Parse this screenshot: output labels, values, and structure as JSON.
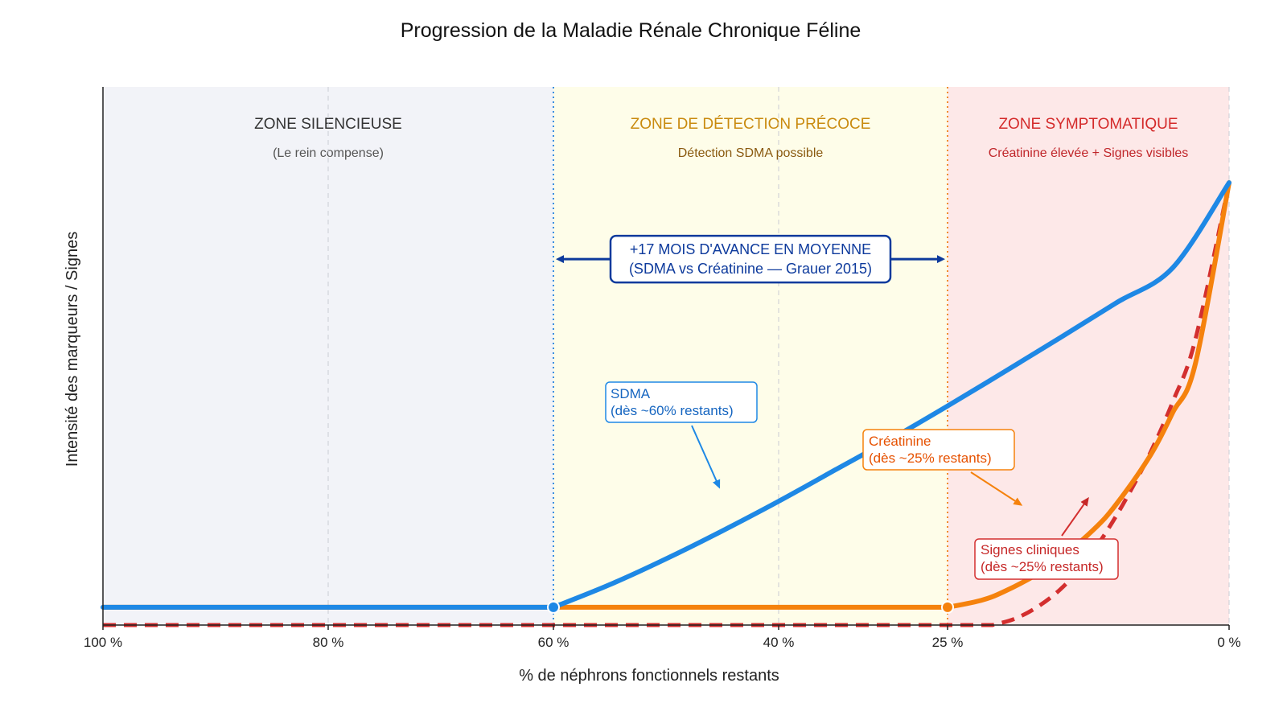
{
  "chart_data": {
    "type": "line",
    "title": "Progression de la Maladie Rénale Chronique Féline",
    "xlabel": "% de néphrons fonctionnels restants",
    "ylabel": "Intensité des marqueurs / Signes",
    "x_reversed": true,
    "xlim": [
      100,
      0
    ],
    "ylim": [
      0,
      100
    ],
    "x_ticks": [
      {
        "value": 100,
        "label": "100 %"
      },
      {
        "value": 80,
        "label": "80 %"
      },
      {
        "value": 60,
        "label": "60 %"
      },
      {
        "value": 40,
        "label": "40 %"
      },
      {
        "value": 25,
        "label": "25 %"
      },
      {
        "value": 0,
        "label": "0 %"
      }
    ],
    "grid_lines_x": [
      80,
      40,
      0
    ],
    "zones": [
      {
        "from": 100,
        "to": 60,
        "title": "ZONE SILENCIEUSE",
        "subtitle": "(Le rein compense)",
        "fill": "#f2f3f8",
        "title_color": "#333333",
        "subtitle_color": "#555555"
      },
      {
        "from": 60,
        "to": 25,
        "title": "ZONE DE DÉTECTION PRÉCOCE",
        "subtitle": "Détection SDMA possible",
        "fill": "#fefde9",
        "title_color": "#c98a0e",
        "subtitle_color": "#8a5a10"
      },
      {
        "from": 25,
        "to": 0,
        "title": "ZONE SYMPTOMATIQUE",
        "subtitle": "Créatinine élevée + Signes visibles",
        "fill": "#fde8e8",
        "title_color": "#d42a2a",
        "subtitle_color": "#c0262a"
      }
    ],
    "threshold_lines": [
      {
        "x": 60,
        "color": "#3b8fe0"
      },
      {
        "x": 25,
        "color": "#f08a2b"
      }
    ],
    "series": [
      {
        "key": "sdma",
        "color": "#1e88e5",
        "dashed": false,
        "x": [
          100,
          60,
          55,
          50,
          45,
          40,
          35,
          30,
          25,
          20,
          15,
          10,
          5,
          0
        ],
        "y": [
          3.3,
          3.3,
          7.5,
          12.3,
          17.5,
          23.0,
          28.8,
          34.6,
          40.7,
          47.0,
          53.4,
          59.9,
          66.4,
          82.2
        ]
      },
      {
        "key": "creatinine",
        "color": "#f5820d",
        "dashed": false,
        "x": [
          100,
          25,
          22,
          20,
          17,
          15,
          12,
          10,
          7,
          5,
          3,
          0
        ],
        "y": [
          3.3,
          3.3,
          4.6,
          6.2,
          9.5,
          12.4,
          17.8,
          22.5,
          31.5,
          39.5,
          48.5,
          82.2
        ]
      },
      {
        "key": "signes",
        "color": "#d32f2f",
        "dashed": true,
        "x": [
          100,
          21,
          19,
          17,
          15,
          13,
          11,
          9,
          7,
          5,
          3,
          0
        ],
        "y": [
          0,
          0,
          1.2,
          3.4,
          6.6,
          11.1,
          17.0,
          24.0,
          32.0,
          41.5,
          53.0,
          82.2
        ]
      }
    ],
    "markers": [
      {
        "x": 60,
        "y": 3.3,
        "color": "#1e88e5"
      },
      {
        "x": 25,
        "y": 3.3,
        "color": "#f5820d"
      }
    ],
    "annotations": {
      "arrow_box": {
        "line1": "+17 MOIS D'AVANCE EN MOYENNE",
        "line2": "(SDMA vs Créatinine — Grauer 2015)",
        "color": "#0d3a9c",
        "x_from": 60,
        "x_to": 25,
        "y": 68
      },
      "sdma_label": {
        "line1": "SDMA",
        "line2": "(dès ~60% restants)",
        "color": "#1e88e5",
        "text_color": "#1565c0"
      },
      "creatinine_label": {
        "line1": "Créatinine",
        "line2": "(dès ~25% restants)",
        "color": "#f5820d",
        "text_color": "#e65100"
      },
      "signes_label": {
        "line1": "Signes cliniques",
        "line2": "(dès ~25% restants)",
        "color": "#d32f2f",
        "text_color": "#c62828"
      }
    }
  }
}
